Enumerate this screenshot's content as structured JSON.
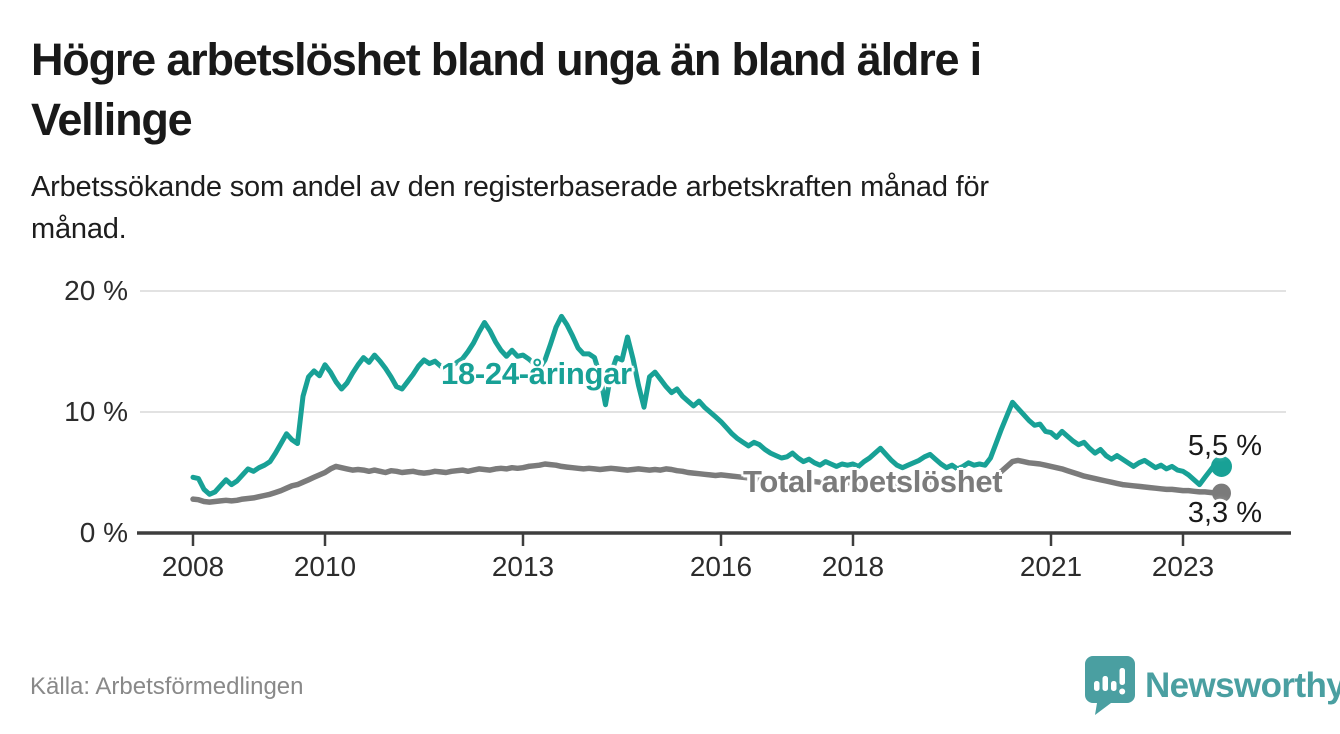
{
  "header": {
    "title_lines": [
      "Högre arbetslöshet bland unga än bland äldre i",
      "Vellinge"
    ],
    "subtitle_lines": [
      "Arbetssökande som andel av den registerbaserade arbetskraften månad för",
      "månad."
    ]
  },
  "colors": {
    "accent_teal": "#18a196",
    "total_gray": "#7b7b7b",
    "grid": "#d9d9d9",
    "axis": "#3e3e3e",
    "text": "#1a1a1a",
    "muted_text": "#898989",
    "brand_teal": "#4a9fa1"
  },
  "chart_data": {
    "type": "line",
    "title": "Högre arbetslöshet bland unga än bland äldre i Vellinge",
    "subtitle": "Arbetssökande som andel av den registerbaserade arbetskraften månad för månad.",
    "x_unit": "month",
    "x_start": "2008-01",
    "x_end": "2023-08",
    "ylim": [
      0,
      20
    ],
    "grid": "horizontal",
    "legend_position": "inline-labels",
    "y_ticks": [
      {
        "label": "0 %",
        "value": 0
      },
      {
        "label": "10 %",
        "value": 10
      },
      {
        "label": "20 %",
        "value": 20
      }
    ],
    "x_ticks": [
      {
        "label": "2008",
        "year": 2008
      },
      {
        "label": "2010",
        "year": 2010
      },
      {
        "label": "2013",
        "year": 2013
      },
      {
        "label": "2016",
        "year": 2016
      },
      {
        "label": "2018",
        "year": 2018
      },
      {
        "label": "2021",
        "year": 2021
      },
      {
        "label": "2023",
        "year": 2023
      }
    ],
    "series": [
      {
        "name": "18-24-åringar",
        "color": "#18a196",
        "end_label": "5,5 %",
        "end_value": 5.5,
        "values": [
          4.6,
          4.5,
          3.6,
          3.2,
          3.4,
          3.9,
          4.4,
          4.0,
          4.3,
          4.8,
          5.3,
          5.1,
          5.4,
          5.6,
          5.9,
          6.6,
          7.4,
          8.2,
          7.7,
          7.4,
          11.3,
          12.9,
          13.4,
          13.0,
          13.9,
          13.3,
          12.5,
          11.9,
          12.4,
          13.2,
          13.9,
          14.5,
          14.1,
          14.7,
          14.2,
          13.6,
          12.9,
          12.1,
          11.9,
          12.5,
          13.1,
          13.8,
          14.3,
          14.0,
          14.2,
          13.8,
          13.5,
          13.8,
          14.1,
          14.4,
          15.0,
          15.7,
          16.6,
          17.4,
          16.7,
          15.8,
          15.1,
          14.6,
          15.1,
          14.6,
          14.7,
          14.4,
          14.0,
          13.6,
          14.3,
          15.6,
          17.0,
          17.9,
          17.2,
          16.3,
          15.3,
          14.8,
          14.8,
          14.5,
          13.0,
          10.6,
          13.2,
          14.5,
          14.3,
          16.2,
          14.4,
          12.2,
          10.4,
          12.9,
          13.3,
          12.7,
          12.1,
          11.6,
          11.9,
          11.3,
          10.9,
          10.5,
          10.9,
          10.4,
          10.0,
          9.6,
          9.2,
          8.7,
          8.2,
          7.8,
          7.5,
          7.2,
          7.5,
          7.3,
          6.9,
          6.6,
          6.4,
          6.2,
          6.3,
          6.6,
          6.2,
          5.9,
          6.1,
          5.8,
          5.6,
          5.9,
          5.7,
          5.5,
          5.7,
          5.6,
          5.7,
          5.5,
          5.9,
          6.2,
          6.6,
          7.0,
          6.5,
          6.0,
          5.6,
          5.4,
          5.6,
          5.8,
          6.0,
          6.3,
          6.5,
          6.1,
          5.7,
          5.4,
          5.6,
          5.3,
          5.5,
          5.8,
          5.6,
          5.7,
          5.6,
          6.2,
          7.4,
          8.6,
          9.7,
          10.8,
          10.3,
          9.8,
          9.3,
          8.9,
          9.0,
          8.4,
          8.3,
          7.9,
          8.4,
          8.0,
          7.6,
          7.3,
          7.5,
          7.0,
          6.6,
          6.9,
          6.4,
          6.1,
          6.4,
          6.1,
          5.8,
          5.5,
          5.8,
          6.0,
          5.7,
          5.4,
          5.6,
          5.3,
          5.5,
          5.2,
          5.1,
          4.8,
          4.4,
          4.0,
          4.6,
          5.2,
          5.8,
          5.5
        ]
      },
      {
        "name": "Total arbetslöshet",
        "color": "#7b7b7b",
        "end_label": "3,3 %",
        "end_value": 3.3,
        "values": [
          2.8,
          2.75,
          2.6,
          2.55,
          2.6,
          2.65,
          2.7,
          2.65,
          2.7,
          2.8,
          2.85,
          2.9,
          3.0,
          3.1,
          3.2,
          3.35,
          3.5,
          3.7,
          3.9,
          4.0,
          4.2,
          4.4,
          4.6,
          4.8,
          5.0,
          5.3,
          5.5,
          5.4,
          5.3,
          5.2,
          5.25,
          5.2,
          5.1,
          5.2,
          5.1,
          5.0,
          5.15,
          5.1,
          5.0,
          5.05,
          5.1,
          5.0,
          4.95,
          5.0,
          5.1,
          5.05,
          5.0,
          5.1,
          5.15,
          5.2,
          5.1,
          5.2,
          5.3,
          5.25,
          5.2,
          5.3,
          5.35,
          5.3,
          5.4,
          5.35,
          5.4,
          5.5,
          5.55,
          5.6,
          5.7,
          5.65,
          5.6,
          5.5,
          5.45,
          5.4,
          5.35,
          5.3,
          5.35,
          5.3,
          5.25,
          5.3,
          5.35,
          5.3,
          5.25,
          5.2,
          5.25,
          5.3,
          5.25,
          5.2,
          5.25,
          5.2,
          5.3,
          5.25,
          5.15,
          5.1,
          5.0,
          4.95,
          4.9,
          4.85,
          4.8,
          4.75,
          4.8,
          4.75,
          4.7,
          4.65,
          4.6,
          4.55,
          4.5,
          4.45,
          4.5,
          4.45,
          4.4,
          4.35,
          4.4,
          4.35,
          4.3,
          4.35,
          4.3,
          4.25,
          4.2,
          4.25,
          4.2,
          4.15,
          4.2,
          4.15,
          4.2,
          4.15,
          4.1,
          4.05,
          4.1,
          4.05,
          4.0,
          4.05,
          4.1,
          4.05,
          4.1,
          4.15,
          4.2,
          4.15,
          4.2,
          4.25,
          4.2,
          4.25,
          4.3,
          4.25,
          4.3,
          4.35,
          4.3,
          4.35,
          4.4,
          4.5,
          4.7,
          5.1,
          5.5,
          5.9,
          6.0,
          5.9,
          5.8,
          5.75,
          5.7,
          5.6,
          5.5,
          5.4,
          5.3,
          5.15,
          5.0,
          4.85,
          4.7,
          4.6,
          4.5,
          4.4,
          4.3,
          4.2,
          4.1,
          4.0,
          3.95,
          3.9,
          3.85,
          3.8,
          3.75,
          3.7,
          3.65,
          3.6,
          3.6,
          3.55,
          3.5,
          3.5,
          3.45,
          3.4,
          3.4,
          3.35,
          3.3,
          3.3
        ]
      }
    ]
  },
  "footer": {
    "source": "Källa: Arbetsförmedlingen",
    "brand_name": "Newsworthy",
    "brand_icon": "speech-bubble-bar-chart-icon"
  }
}
